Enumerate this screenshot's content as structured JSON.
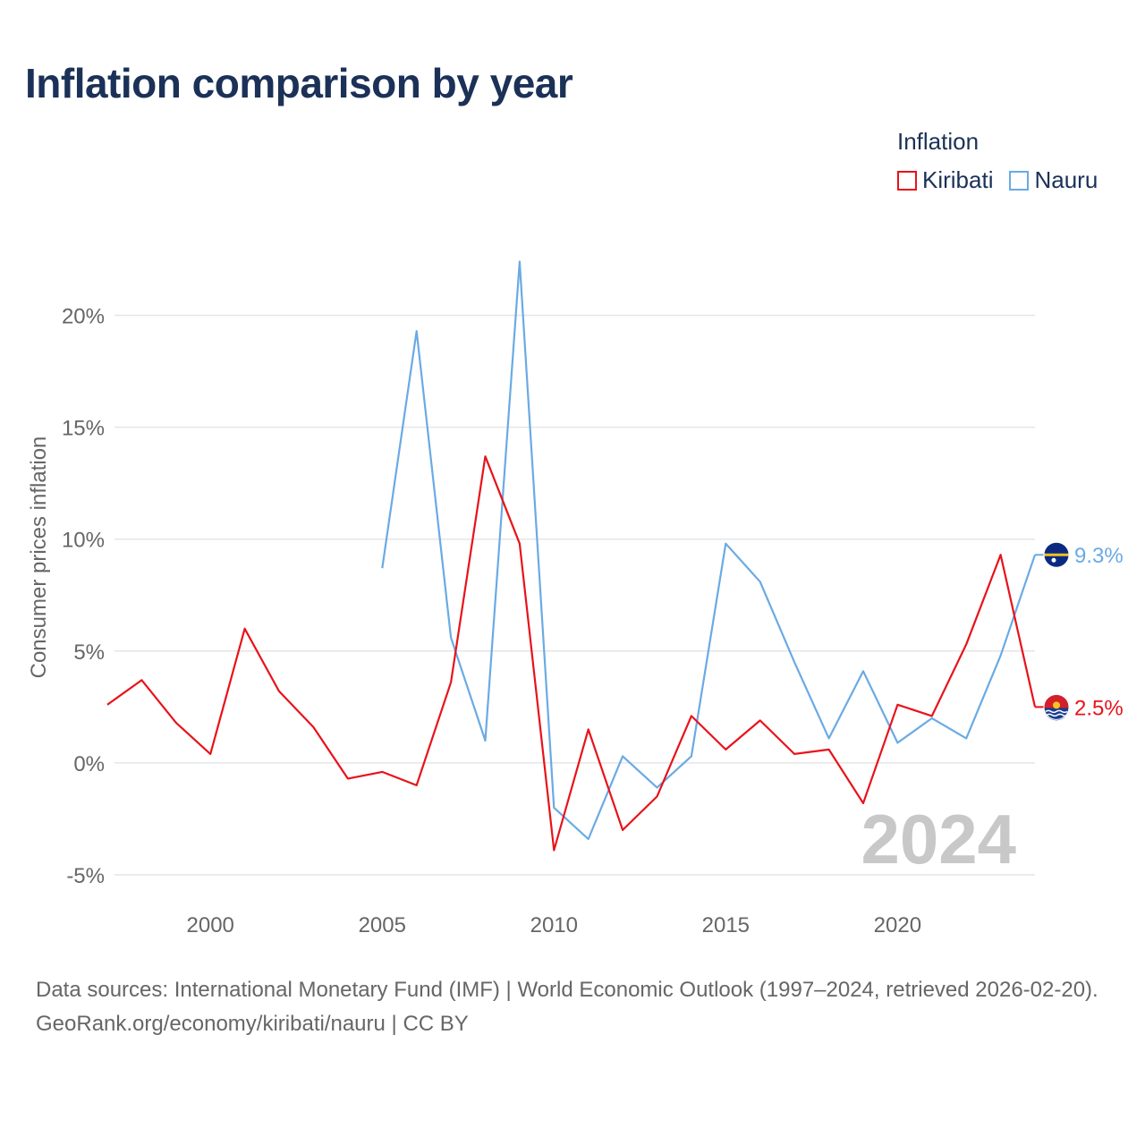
{
  "title": "Inflation comparison by year",
  "legend": {
    "title": "Inflation"
  },
  "colors": {
    "kiribati": "#e8121a",
    "nauru": "#6aaae4",
    "title": "#1b3157",
    "grid": "#e6e6e6",
    "axis_text": "#666666",
    "year_label": "#c8c8c8"
  },
  "chart_data": {
    "type": "line",
    "title": "Inflation comparison by year",
    "ylabel": "Consumer prices inflation",
    "xlabel": "",
    "xlim": [
      1997,
      2024
    ],
    "ylim": [
      -6.2,
      22.5
    ],
    "x_ticks": [
      2000,
      2005,
      2010,
      2015,
      2020
    ],
    "x_tick_labels": [
      "2000",
      "2005",
      "2010",
      "2015",
      "2020"
    ],
    "y_ticks": [
      -5,
      0,
      5,
      10,
      15,
      20
    ],
    "y_tick_labels": [
      "-5%",
      "0%",
      "5%",
      "10%",
      "15%",
      "20%"
    ],
    "grid": true,
    "legend_position": "top-right",
    "year_label": "2024",
    "series": [
      {
        "name": "Kiribati",
        "color": "#e8121a",
        "end_label": "2.5%",
        "x": [
          1997,
          1998,
          1999,
          2000,
          2001,
          2002,
          2003,
          2004,
          2005,
          2006,
          2007,
          2008,
          2009,
          2010,
          2011,
          2012,
          2013,
          2014,
          2015,
          2016,
          2017,
          2018,
          2019,
          2020,
          2021,
          2022,
          2023,
          2024
        ],
        "values": [
          2.6,
          3.7,
          1.8,
          0.4,
          6.0,
          3.2,
          1.6,
          -0.7,
          -0.4,
          -1.0,
          3.6,
          13.7,
          9.8,
          -3.9,
          1.5,
          -3.0,
          -1.5,
          2.1,
          0.6,
          1.9,
          0.4,
          0.6,
          -1.8,
          2.6,
          2.1,
          5.3,
          9.3,
          2.5
        ]
      },
      {
        "name": "Nauru",
        "color": "#6aaae4",
        "end_label": "9.3%",
        "x": [
          2005,
          2006,
          2007,
          2008,
          2009,
          2010,
          2011,
          2012,
          2013,
          2014,
          2015,
          2016,
          2017,
          2018,
          2019,
          2020,
          2021,
          2022,
          2023,
          2024
        ],
        "values": [
          8.7,
          19.3,
          5.6,
          1.0,
          22.4,
          -2.0,
          -3.4,
          0.3,
          -1.1,
          0.3,
          9.8,
          8.1,
          4.5,
          1.1,
          4.1,
          0.9,
          2.0,
          1.1,
          4.8,
          9.3
        ]
      }
    ]
  },
  "footer": {
    "sources": "Data sources: International Monetary Fund (IMF) | World Economic Outlook (1997–2024, retrieved 2026-02-20).",
    "credit": "GeoRank.org/economy/kiribati/nauru | CC BY"
  }
}
